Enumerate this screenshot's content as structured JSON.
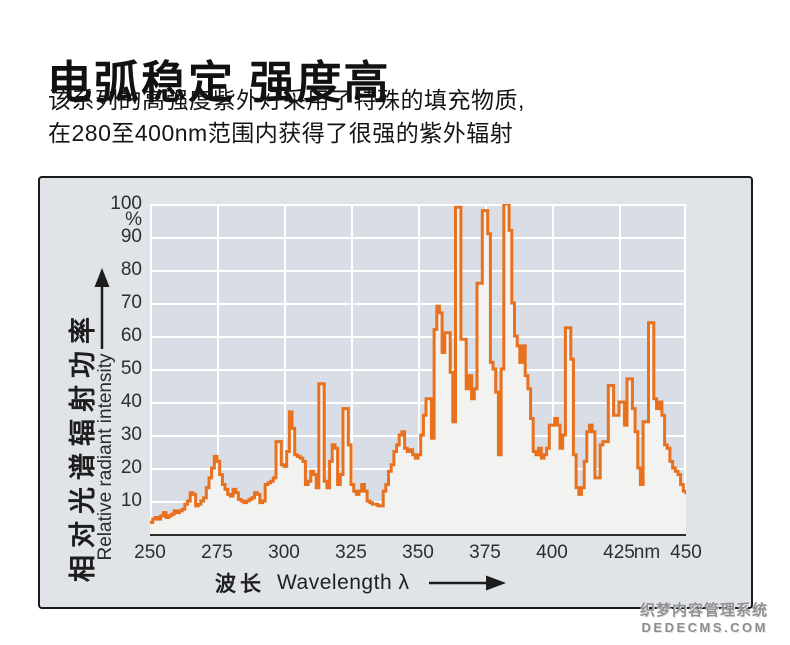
{
  "header": {
    "title": "电弧稳定 强度高",
    "subtitle_line1": "该系列的高强度紫外灯采用了特殊的填充物质,",
    "subtitle_line2": "在280至400nm范围内获得了很强的紫外辐射"
  },
  "watermark": {
    "line1": "织梦内容管理系统",
    "line2": "DEDECMS.COM"
  },
  "chart_data": {
    "type": "area",
    "line_style": "step",
    "title": "",
    "x_axis": {
      "label_zh": "波长",
      "label_en": "Wavelength λ",
      "unit": "nm",
      "range": [
        250,
        450
      ],
      "ticks": [
        250,
        275,
        300,
        325,
        350,
        375,
        400,
        425,
        450
      ]
    },
    "y_axis": {
      "label_zh": "相对光谱辐射功率",
      "label_en": "Relative radiant intensity",
      "unit": "%",
      "range": [
        0,
        100
      ],
      "ticks": [
        100,
        90,
        80,
        70,
        60,
        50,
        40,
        30,
        20,
        10
      ]
    },
    "grid": true,
    "colors": {
      "line": "#e8711f",
      "fill": "#f2f3f0",
      "plot_bg": "#d9dde6",
      "panel_bg": "#e0e3e8",
      "grid": "#ffffff"
    },
    "series": [
      {
        "name": "relative radiant intensity (%)",
        "points": [
          [
            250,
            3.5
          ],
          [
            251,
            4.5
          ],
          [
            252,
            5
          ],
          [
            253,
            4.5
          ],
          [
            254,
            5.5
          ],
          [
            255,
            6.5
          ],
          [
            256,
            5
          ],
          [
            257,
            5.5
          ],
          [
            258,
            6
          ],
          [
            259,
            7
          ],
          [
            260,
            6.5
          ],
          [
            261,
            7
          ],
          [
            262,
            7.5
          ],
          [
            263,
            9
          ],
          [
            264,
            10
          ],
          [
            265,
            12.5
          ],
          [
            266,
            12
          ],
          [
            267,
            8.5
          ],
          [
            268,
            9
          ],
          [
            269,
            10
          ],
          [
            270,
            11
          ],
          [
            271,
            14
          ],
          [
            272,
            17
          ],
          [
            273,
            20
          ],
          [
            274,
            23.5
          ],
          [
            275,
            22
          ],
          [
            276,
            18
          ],
          [
            277,
            15
          ],
          [
            278,
            13.5
          ],
          [
            279,
            12
          ],
          [
            280,
            11.5
          ],
          [
            281,
            13.5
          ],
          [
            282,
            12.5
          ],
          [
            283,
            10.5
          ],
          [
            284,
            10
          ],
          [
            285,
            9.5
          ],
          [
            286,
            10
          ],
          [
            287,
            10.5
          ],
          [
            288,
            11
          ],
          [
            289,
            12.5
          ],
          [
            290,
            12
          ],
          [
            291,
            9.5
          ],
          [
            292,
            10
          ],
          [
            293,
            15
          ],
          [
            294,
            15.5
          ],
          [
            295,
            16
          ],
          [
            296,
            17
          ],
          [
            297,
            28
          ],
          [
            298,
            28
          ],
          [
            299,
            21
          ],
          [
            300,
            20.5
          ],
          [
            301,
            25
          ],
          [
            302,
            37
          ],
          [
            303,
            32
          ],
          [
            304,
            24
          ],
          [
            305,
            23.5
          ],
          [
            306,
            23
          ],
          [
            307,
            22
          ],
          [
            308,
            15
          ],
          [
            309,
            16
          ],
          [
            310,
            19
          ],
          [
            311,
            18
          ],
          [
            312,
            14
          ],
          [
            313,
            45.5
          ],
          [
            314,
            45.5
          ],
          [
            315,
            16
          ],
          [
            316,
            14
          ],
          [
            317,
            22
          ],
          [
            318,
            27
          ],
          [
            319,
            26
          ],
          [
            320,
            15
          ],
          [
            321,
            18
          ],
          [
            322,
            38
          ],
          [
            323,
            38
          ],
          [
            324,
            27
          ],
          [
            325,
            15
          ],
          [
            326,
            13
          ],
          [
            327,
            12
          ],
          [
            328,
            13
          ],
          [
            329,
            15
          ],
          [
            330,
            13
          ],
          [
            331,
            10
          ],
          [
            332,
            9.5
          ],
          [
            333,
            9
          ],
          [
            334,
            9
          ],
          [
            335,
            8.5
          ],
          [
            336,
            8.5
          ],
          [
            337,
            13
          ],
          [
            338,
            15
          ],
          [
            339,
            19
          ],
          [
            340,
            21
          ],
          [
            341,
            25
          ],
          [
            342,
            27
          ],
          [
            343,
            30
          ],
          [
            344,
            31
          ],
          [
            345,
            26
          ],
          [
            346,
            25
          ],
          [
            347,
            25.5
          ],
          [
            348,
            24
          ],
          [
            349,
            23
          ],
          [
            350,
            24
          ],
          [
            351,
            30
          ],
          [
            352,
            36
          ],
          [
            353,
            41
          ],
          [
            354,
            41
          ],
          [
            355,
            29
          ],
          [
            356,
            62
          ],
          [
            357,
            69
          ],
          [
            358,
            67
          ],
          [
            359,
            55
          ],
          [
            360,
            61
          ],
          [
            361,
            61
          ],
          [
            362,
            49
          ],
          [
            363,
            34
          ],
          [
            364,
            99
          ],
          [
            365,
            99
          ],
          [
            366,
            59
          ],
          [
            367,
            59
          ],
          [
            368,
            44
          ],
          [
            369,
            48
          ],
          [
            370,
            41
          ],
          [
            371,
            44
          ],
          [
            372,
            76
          ],
          [
            373,
            76
          ],
          [
            374,
            98
          ],
          [
            375,
            98
          ],
          [
            376,
            91
          ],
          [
            377,
            52
          ],
          [
            378,
            50
          ],
          [
            379,
            43
          ],
          [
            380,
            24
          ],
          [
            381,
            50
          ],
          [
            382,
            100
          ],
          [
            383,
            100
          ],
          [
            384,
            92
          ],
          [
            385,
            70
          ],
          [
            386,
            60
          ],
          [
            387,
            57
          ],
          [
            388,
            52
          ],
          [
            389,
            57
          ],
          [
            390,
            48
          ],
          [
            391,
            44
          ],
          [
            392,
            35
          ],
          [
            393,
            25
          ],
          [
            394,
            24
          ],
          [
            395,
            26
          ],
          [
            396,
            23
          ],
          [
            397,
            24
          ],
          [
            398,
            26
          ],
          [
            399,
            33
          ],
          [
            400,
            33
          ],
          [
            401,
            35
          ],
          [
            402,
            33
          ],
          [
            403,
            26
          ],
          [
            404,
            30
          ],
          [
            405,
            62.5
          ],
          [
            406,
            62.5
          ],
          [
            407,
            53
          ],
          [
            408,
            24
          ],
          [
            409,
            14
          ],
          [
            410,
            12
          ],
          [
            411,
            14
          ],
          [
            412,
            22
          ],
          [
            413,
            31
          ],
          [
            414,
            33
          ],
          [
            415,
            31
          ],
          [
            416,
            17
          ],
          [
            417,
            17
          ],
          [
            418,
            27
          ],
          [
            419,
            28
          ],
          [
            420,
            28
          ],
          [
            421,
            45
          ],
          [
            422,
            45
          ],
          [
            423,
            36
          ],
          [
            424,
            36
          ],
          [
            425,
            40
          ],
          [
            426,
            40
          ],
          [
            427,
            33
          ],
          [
            428,
            47
          ],
          [
            429,
            47
          ],
          [
            430,
            38
          ],
          [
            431,
            31
          ],
          [
            432,
            20
          ],
          [
            433,
            15
          ],
          [
            434,
            34
          ],
          [
            435,
            34
          ],
          [
            436,
            64
          ],
          [
            437,
            64
          ],
          [
            438,
            41
          ],
          [
            439,
            38
          ],
          [
            440,
            40
          ],
          [
            441,
            36
          ],
          [
            442,
            27
          ],
          [
            443,
            26
          ],
          [
            444,
            22
          ],
          [
            445,
            20
          ],
          [
            446,
            19
          ],
          [
            447,
            18
          ],
          [
            448,
            15
          ],
          [
            449,
            13
          ],
          [
            450,
            12
          ]
        ]
      }
    ]
  }
}
